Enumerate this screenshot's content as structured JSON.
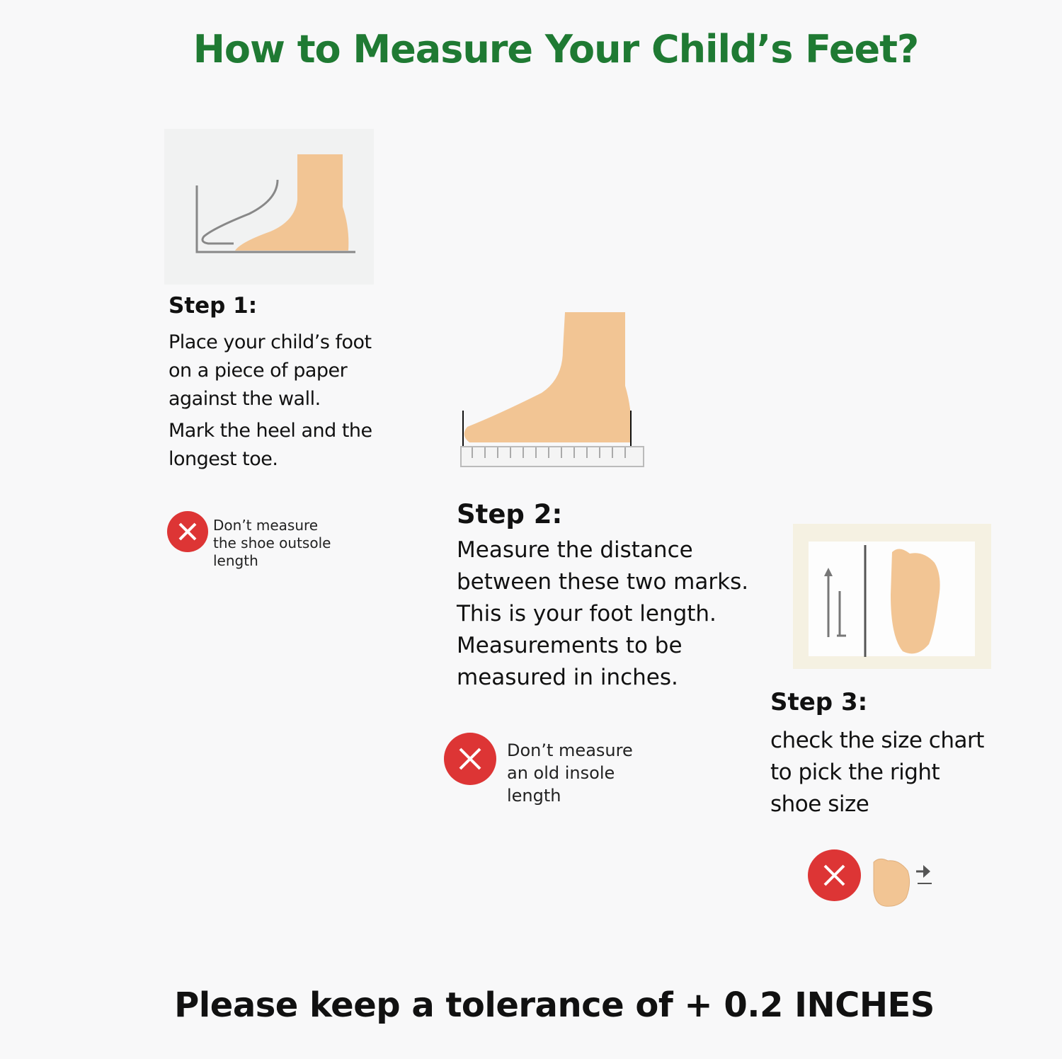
{
  "title": "How to Measure Your Child’s Feet?",
  "steps": [
    {
      "heading": "Step 1:",
      "lines": [
        "Place your child’s foot",
        "on a piece of paper",
        "against the wall.",
        "Mark the heel and the",
        "longest toe."
      ],
      "warning": [
        "Don’t measure",
        "the shoe outsole",
        "length"
      ]
    },
    {
      "heading": "Step 2:",
      "lines": [
        "Measure the distance",
        "between these two marks.",
        "This is your foot length.",
        "Measurements to be",
        "measured in inches."
      ],
      "warning": [
        "Don’t measure",
        "an old insole",
        "length"
      ]
    },
    {
      "heading": "Step 3:",
      "lines": [
        "check the size chart",
        "to pick the right",
        "shoe size"
      ]
    }
  ],
  "footer": "Please keep a tolerance of + 0.2 INCHES",
  "colors": {
    "title": "#1f7a33",
    "warning": "#dd3535",
    "skin": "#f2c594"
  },
  "icons": [
    "foot-against-wall-illustration",
    "foot-on-ruler-illustration",
    "foot-size-chart-illustration",
    "close-x-icon",
    "toe-arrow-icon"
  ]
}
